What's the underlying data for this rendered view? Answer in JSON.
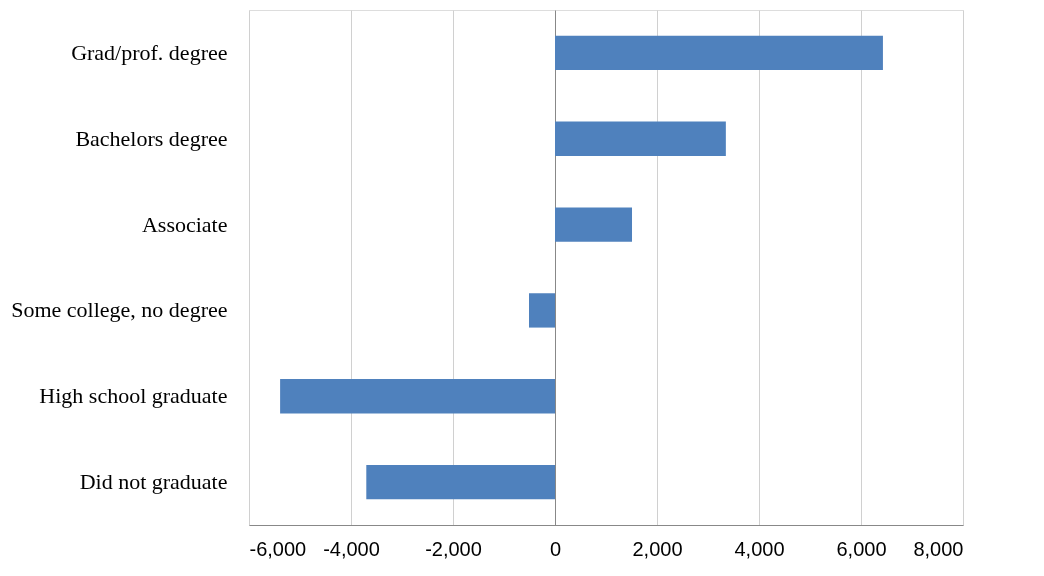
{
  "chart_data": {
    "type": "bar",
    "orientation": "horizontal",
    "categories": [
      "Grad/prof. degree",
      "Bachelors degree",
      "Associate",
      "Some college, no degree",
      "High school graduate",
      "Did not graduate"
    ],
    "values": [
      6430,
      3350,
      1510,
      -510,
      -5390,
      -3700
    ],
    "color": "#4f81bd",
    "xlim": [
      -6000,
      8000
    ],
    "xticks": [
      {
        "value": -6000,
        "label": "-6,000"
      },
      {
        "value": -4000,
        "label": "-4,000"
      },
      {
        "value": -2000,
        "label": "-2,000"
      },
      0,
      {
        "value": 2000,
        "label": "2,000"
      },
      {
        "value": 4000,
        "label": "4,000"
      },
      {
        "value": 6000,
        "label": "6,000"
      },
      {
        "value": 8000,
        "label": "8,000"
      }
    ],
    "grid": "x"
  }
}
